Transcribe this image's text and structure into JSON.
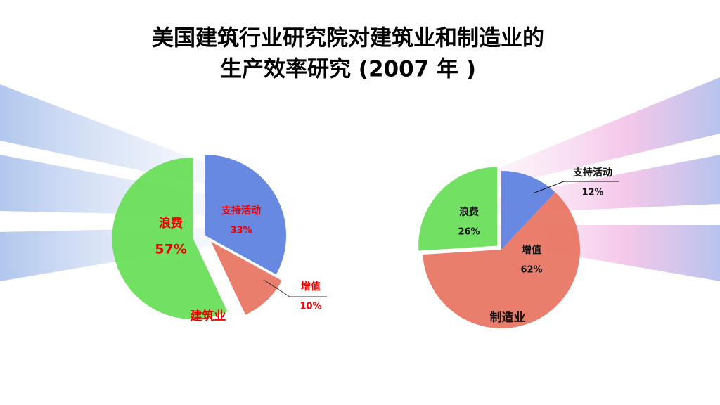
{
  "title": [
    "美国建筑行业研究院对建筑业和制造业的",
    "生产效率研究 (2007 年 )"
  ],
  "chart_data": [
    {
      "type": "pie",
      "title": "建筑业",
      "categories": [
        "支持活动",
        "增值",
        "浪费"
      ],
      "values": [
        33,
        10,
        57
      ],
      "value_labels": [
        "33%",
        "10%",
        "57%"
      ],
      "colors": [
        "#5b7fe0",
        "#e8735f",
        "#66dd55"
      ]
    },
    {
      "type": "pie",
      "title": "制造业",
      "categories": [
        "支持活动",
        "增值",
        "浪费"
      ],
      "values": [
        12,
        62,
        26
      ],
      "value_labels": [
        "12%",
        "62%",
        "26%"
      ],
      "colors": [
        "#5b7fe0",
        "#e8735f",
        "#66dd55"
      ]
    }
  ]
}
